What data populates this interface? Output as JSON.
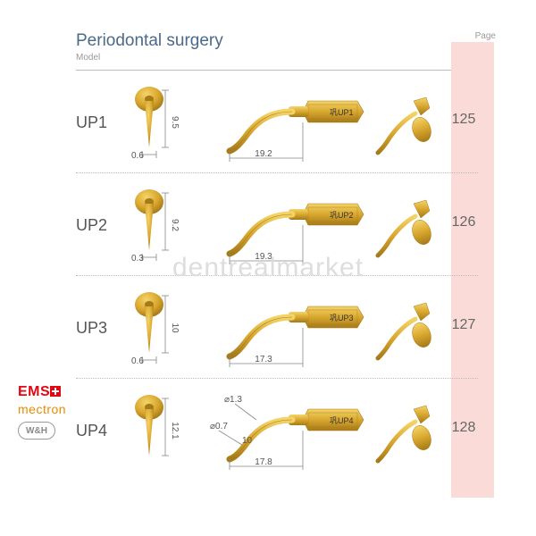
{
  "header": {
    "title": "Periodontal surgery",
    "subtitle": "Model",
    "page_label": "Page"
  },
  "watermark": "dentrealmarket",
  "brands": {
    "ems": "EMS",
    "mectron": "mectron",
    "wh": "W&H"
  },
  "colors": {
    "gold_light": "#f4d468",
    "gold": "#d9a72f",
    "gold_dark": "#a57a18",
    "strip": "#fadbd8",
    "title": "#4a6a8a",
    "dim": "#555555"
  },
  "rows": [
    {
      "model": "UP1",
      "page": "125",
      "front": {
        "height": "9.5",
        "width": "0.6"
      },
      "side": {
        "length": "19.2",
        "label": "UP1"
      }
    },
    {
      "model": "UP2",
      "page": "126",
      "front": {
        "height": "9.2",
        "width": "0.3"
      },
      "side": {
        "length": "19.3",
        "label": "UP2"
      }
    },
    {
      "model": "UP3",
      "page": "127",
      "front": {
        "height": "10",
        "width": "0.6"
      },
      "side": {
        "length": "17.3",
        "label": "UP3"
      }
    },
    {
      "model": "UP4",
      "page": "128",
      "front": {
        "height": "12.1",
        "width": ""
      },
      "side": {
        "length": "17.8",
        "label": "UP4",
        "d1": "⌀1.3",
        "d2": "⌀0.7",
        "mid": "10"
      }
    }
  ]
}
